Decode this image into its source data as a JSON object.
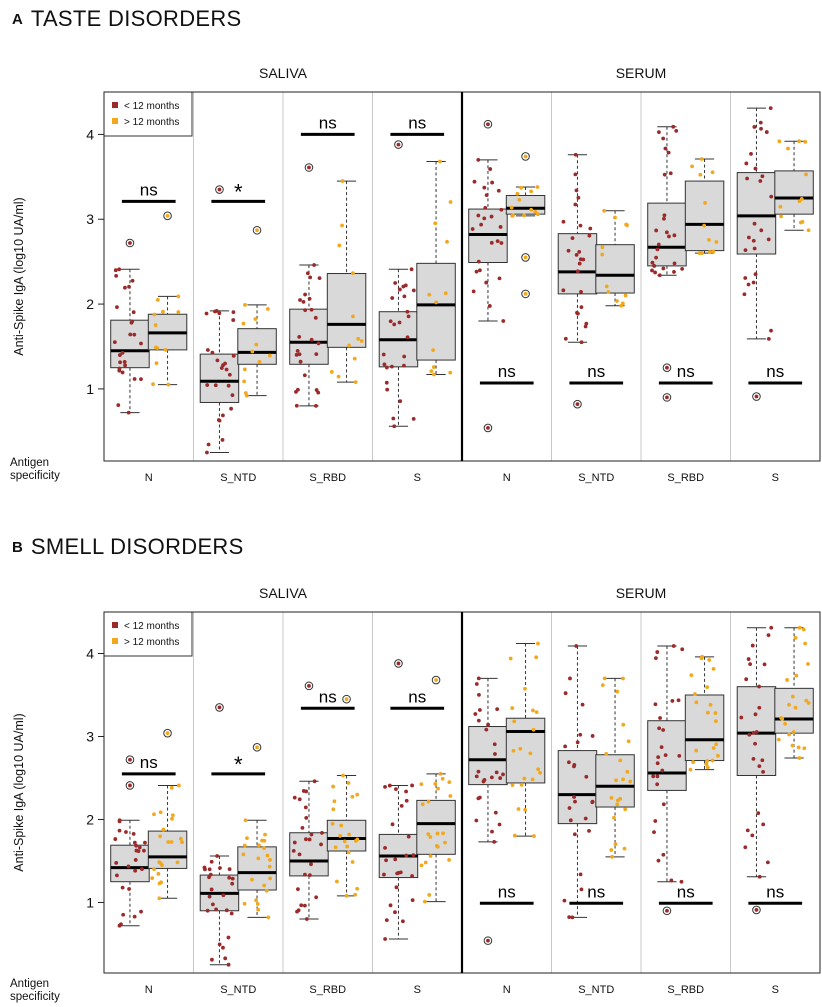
{
  "charts": [
    {
      "letter": "A",
      "title": "TASTE DISORDERS",
      "chart_data": {
        "type": "box",
        "ylabel": "Anti-Spike IgA (log10 UA/ml)",
        "ylim": [
          0.15,
          4.5
        ],
        "yticks": [
          1,
          2,
          3,
          4
        ],
        "facets": [
          "SALIVA",
          "SERUM"
        ],
        "categories": [
          "N",
          "S_NTD",
          "S_RBD",
          "S"
        ],
        "x_title": "Antigen specificity",
        "legend": {
          "position": "top-left",
          "entries": [
            {
              "name": "< 12 months",
              "color": "#9b2a2a"
            },
            {
              "name": "> 12 months",
              "color": "#f2a81d"
            }
          ]
        },
        "series": [
          {
            "name": "< 12 months",
            "color": "#9b2a2a",
            "boxes": [
              {
                "facet": "SALIVA",
                "category": "N",
                "lower_whisker": 0.72,
                "q1": 1.25,
                "median": 1.45,
                "q3": 1.81,
                "upper_whisker": 2.41,
                "outliers": [
                  2.72
                ],
                "n": 26
              },
              {
                "facet": "SALIVA",
                "category": "S_NTD",
                "lower_whisker": 0.25,
                "q1": 0.84,
                "median": 1.09,
                "q3": 1.41,
                "upper_whisker": 1.92,
                "outliers": [
                  3.35
                ],
                "n": 26
              },
              {
                "facet": "SALIVA",
                "category": "S_RBD",
                "lower_whisker": 0.8,
                "q1": 1.29,
                "median": 1.55,
                "q3": 1.94,
                "upper_whisker": 2.46,
                "outliers": [
                  3.61
                ],
                "n": 26
              },
              {
                "facet": "SALIVA",
                "category": "S",
                "lower_whisker": 0.56,
                "q1": 1.26,
                "median": 1.58,
                "q3": 1.91,
                "upper_whisker": 2.41,
                "outliers": [
                  3.88
                ],
                "n": 26
              },
              {
                "facet": "SERUM",
                "category": "N",
                "lower_whisker": 1.8,
                "q1": 2.49,
                "median": 2.82,
                "q3": 3.12,
                "upper_whisker": 3.7,
                "outliers": [
                  4.12,
                  0.54
                ],
                "n": 26
              },
              {
                "facet": "SERUM",
                "category": "S_NTD",
                "lower_whisker": 1.55,
                "q1": 2.12,
                "median": 2.38,
                "q3": 2.83,
                "upper_whisker": 3.76,
                "outliers": [
                  0.82
                ],
                "n": 26
              },
              {
                "facet": "SERUM",
                "category": "S_RBD",
                "lower_whisker": 2.34,
                "q1": 2.45,
                "median": 2.67,
                "q3": 3.19,
                "upper_whisker": 4.09,
                "outliers": [
                  1.25,
                  0.9
                ],
                "n": 26
              },
              {
                "facet": "SERUM",
                "category": "S",
                "lower_whisker": 1.59,
                "q1": 2.59,
                "median": 3.04,
                "q3": 3.55,
                "upper_whisker": 4.31,
                "outliers": [
                  0.91
                ],
                "n": 26
              }
            ]
          },
          {
            "name": "> 12 months",
            "color": "#f2a81d",
            "boxes": [
              {
                "facet": "SALIVA",
                "category": "N",
                "lower_whisker": 1.05,
                "q1": 1.46,
                "median": 1.66,
                "q3": 1.88,
                "upper_whisker": 2.09,
                "outliers": [
                  3.04
                ],
                "n": 12
              },
              {
                "facet": "SALIVA",
                "category": "S_NTD",
                "lower_whisker": 0.92,
                "q1": 1.29,
                "median": 1.43,
                "q3": 1.71,
                "upper_whisker": 1.99,
                "outliers": [
                  2.87
                ],
                "n": 12
              },
              {
                "facet": "SALIVA",
                "category": "S_RBD",
                "lower_whisker": 1.08,
                "q1": 1.49,
                "median": 1.76,
                "q3": 2.36,
                "upper_whisker": 3.45,
                "outliers": [],
                "n": 12
              },
              {
                "facet": "SALIVA",
                "category": "S",
                "lower_whisker": 1.17,
                "q1": 1.34,
                "median": 1.99,
                "q3": 2.48,
                "upper_whisker": 3.68,
                "outliers": [],
                "n": 12
              },
              {
                "facet": "SERUM",
                "category": "N",
                "lower_whisker": 3.04,
                "q1": 3.06,
                "median": 3.13,
                "q3": 3.28,
                "upper_whisker": 3.38,
                "outliers": [
                  3.74,
                  2.55,
                  2.12
                ],
                "n": 12
              },
              {
                "facet": "SERUM",
                "category": "S_NTD",
                "lower_whisker": 1.98,
                "q1": 2.13,
                "median": 2.34,
                "q3": 2.7,
                "upper_whisker": 3.1,
                "outliers": [],
                "n": 12
              },
              {
                "facet": "SERUM",
                "category": "S_RBD",
                "lower_whisker": 2.6,
                "q1": 2.63,
                "median": 2.94,
                "q3": 3.45,
                "upper_whisker": 3.71,
                "outliers": [],
                "n": 12
              },
              {
                "facet": "SERUM",
                "category": "S",
                "lower_whisker": 2.87,
                "q1": 3.06,
                "median": 3.25,
                "q3": 3.57,
                "upper_whisker": 3.92,
                "outliers": [],
                "n": 12
              }
            ]
          }
        ],
        "annotations": [
          {
            "facet": "SALIVA",
            "category": "N",
            "label": "ns",
            "y": 3.21
          },
          {
            "facet": "SALIVA",
            "category": "S_NTD",
            "label": "*",
            "y": 3.21
          },
          {
            "facet": "SALIVA",
            "category": "S_RBD",
            "label": "ns",
            "y": 4.0
          },
          {
            "facet": "SALIVA",
            "category": "S",
            "label": "ns",
            "y": 4.0
          },
          {
            "facet": "SERUM",
            "category": "N",
            "label": "ns",
            "y": 1.07
          },
          {
            "facet": "SERUM",
            "category": "S_NTD",
            "label": "ns",
            "y": 1.07
          },
          {
            "facet": "SERUM",
            "category": "S_RBD",
            "label": "ns",
            "y": 1.07
          },
          {
            "facet": "SERUM",
            "category": "S",
            "label": "ns",
            "y": 1.07
          }
        ]
      }
    },
    {
      "letter": "B",
      "title": "SMELL DISORDERS",
      "chart_data": {
        "type": "box",
        "ylabel": "Anti-Spike IgA (log10 UA/ml)",
        "ylim": [
          0.15,
          4.5
        ],
        "yticks": [
          1,
          2,
          3,
          4
        ],
        "facets": [
          "SALIVA",
          "SERUM"
        ],
        "categories": [
          "N",
          "S_NTD",
          "S_RBD",
          "S"
        ],
        "x_title": "Antigen specificity",
        "legend": {
          "position": "top-left",
          "entries": [
            {
              "name": "< 12 months",
              "color": "#9b2a2a"
            },
            {
              "name": "> 12 months",
              "color": "#f2a81d"
            }
          ]
        },
        "series": [
          {
            "name": "< 12 months",
            "color": "#9b2a2a",
            "boxes": [
              {
                "facet": "SALIVA",
                "category": "N",
                "lower_whisker": 0.72,
                "q1": 1.25,
                "median": 1.42,
                "q3": 1.69,
                "upper_whisker": 1.99,
                "outliers": [
                  2.72,
                  2.41
                ],
                "n": 26
              },
              {
                "facet": "SALIVA",
                "category": "S_NTD",
                "lower_whisker": 0.25,
                "q1": 0.9,
                "median": 1.11,
                "q3": 1.33,
                "upper_whisker": 1.56,
                "outliers": [
                  3.35
                ],
                "n": 26
              },
              {
                "facet": "SALIVA",
                "category": "S_RBD",
                "lower_whisker": 0.8,
                "q1": 1.32,
                "median": 1.5,
                "q3": 1.84,
                "upper_whisker": 2.46,
                "outliers": [
                  3.61
                ],
                "n": 26
              },
              {
                "facet": "SALIVA",
                "category": "S",
                "lower_whisker": 0.56,
                "q1": 1.3,
                "median": 1.56,
                "q3": 1.82,
                "upper_whisker": 2.41,
                "outliers": [
                  3.88
                ],
                "n": 26
              },
              {
                "facet": "SERUM",
                "category": "N",
                "lower_whisker": 1.73,
                "q1": 2.42,
                "median": 2.72,
                "q3": 3.12,
                "upper_whisker": 3.7,
                "outliers": [
                  0.54
                ],
                "n": 26
              },
              {
                "facet": "SERUM",
                "category": "S_NTD",
                "lower_whisker": 0.82,
                "q1": 1.95,
                "median": 2.3,
                "q3": 2.83,
                "upper_whisker": 4.09,
                "outliers": [],
                "n": 26
              },
              {
                "facet": "SERUM",
                "category": "S_RBD",
                "lower_whisker": 1.25,
                "q1": 2.35,
                "median": 2.56,
                "q3": 3.19,
                "upper_whisker": 4.09,
                "outliers": [
                  0.9
                ],
                "n": 26
              },
              {
                "facet": "SERUM",
                "category": "S",
                "lower_whisker": 1.31,
                "q1": 2.53,
                "median": 3.04,
                "q3": 3.6,
                "upper_whisker": 4.31,
                "outliers": [
                  0.91
                ],
                "n": 26
              }
            ]
          },
          {
            "name": "> 12 months",
            "color": "#f2a81d",
            "boxes": [
              {
                "facet": "SALIVA",
                "category": "N",
                "lower_whisker": 1.05,
                "q1": 1.41,
                "median": 1.55,
                "q3": 1.86,
                "upper_whisker": 2.41,
                "outliers": [
                  3.04
                ],
                "n": 22
              },
              {
                "facet": "SALIVA",
                "category": "S_NTD",
                "lower_whisker": 0.82,
                "q1": 1.15,
                "median": 1.36,
                "q3": 1.67,
                "upper_whisker": 1.99,
                "outliers": [
                  2.87
                ],
                "n": 22
              },
              {
                "facet": "SALIVA",
                "category": "S_RBD",
                "lower_whisker": 1.08,
                "q1": 1.62,
                "median": 1.77,
                "q3": 1.99,
                "upper_whisker": 2.53,
                "outliers": [
                  3.45
                ],
                "n": 22
              },
              {
                "facet": "SALIVA",
                "category": "S",
                "lower_whisker": 1.01,
                "q1": 1.58,
                "median": 1.95,
                "q3": 2.23,
                "upper_whisker": 2.55,
                "outliers": [
                  3.68
                ],
                "n": 22
              },
              {
                "facet": "SERUM",
                "category": "N",
                "lower_whisker": 1.8,
                "q1": 2.44,
                "median": 3.06,
                "q3": 3.22,
                "upper_whisker": 4.12,
                "outliers": [],
                "n": 22
              },
              {
                "facet": "SERUM",
                "category": "S_NTD",
                "lower_whisker": 1.55,
                "q1": 2.15,
                "median": 2.4,
                "q3": 2.78,
                "upper_whisker": 3.7,
                "outliers": [],
                "n": 22
              },
              {
                "facet": "SERUM",
                "category": "S_RBD",
                "lower_whisker": 2.6,
                "q1": 2.71,
                "median": 2.96,
                "q3": 3.5,
                "upper_whisker": 3.96,
                "outliers": [],
                "n": 22
              },
              {
                "facet": "SERUM",
                "category": "S",
                "lower_whisker": 2.74,
                "q1": 3.04,
                "median": 3.21,
                "q3": 3.58,
                "upper_whisker": 4.31,
                "outliers": [],
                "n": 22
              }
            ]
          }
        ],
        "annotations": [
          {
            "facet": "SALIVA",
            "category": "N",
            "label": "ns",
            "y": 2.55
          },
          {
            "facet": "SALIVA",
            "category": "S_NTD",
            "label": "*",
            "y": 2.55
          },
          {
            "facet": "SALIVA",
            "category": "S_RBD",
            "label": "ns",
            "y": 3.34
          },
          {
            "facet": "SALIVA",
            "category": "S",
            "label": "ns",
            "y": 3.34
          },
          {
            "facet": "SERUM",
            "category": "N",
            "label": "ns",
            "y": 0.99
          },
          {
            "facet": "SERUM",
            "category": "S_NTD",
            "label": "ns",
            "y": 0.99
          },
          {
            "facet": "SERUM",
            "category": "S_RBD",
            "label": "ns",
            "y": 0.99
          },
          {
            "facet": "SERUM",
            "category": "S",
            "label": "ns",
            "y": 0.99
          }
        ]
      }
    }
  ],
  "x_title_lines": [
    "Antigen",
    "specificity"
  ],
  "colors": {
    "group_lt12": "#9b2a2a",
    "group_gt12": "#f2a81d",
    "box_fill": "#d9d9d9",
    "divider": "#c8c8c8"
  }
}
